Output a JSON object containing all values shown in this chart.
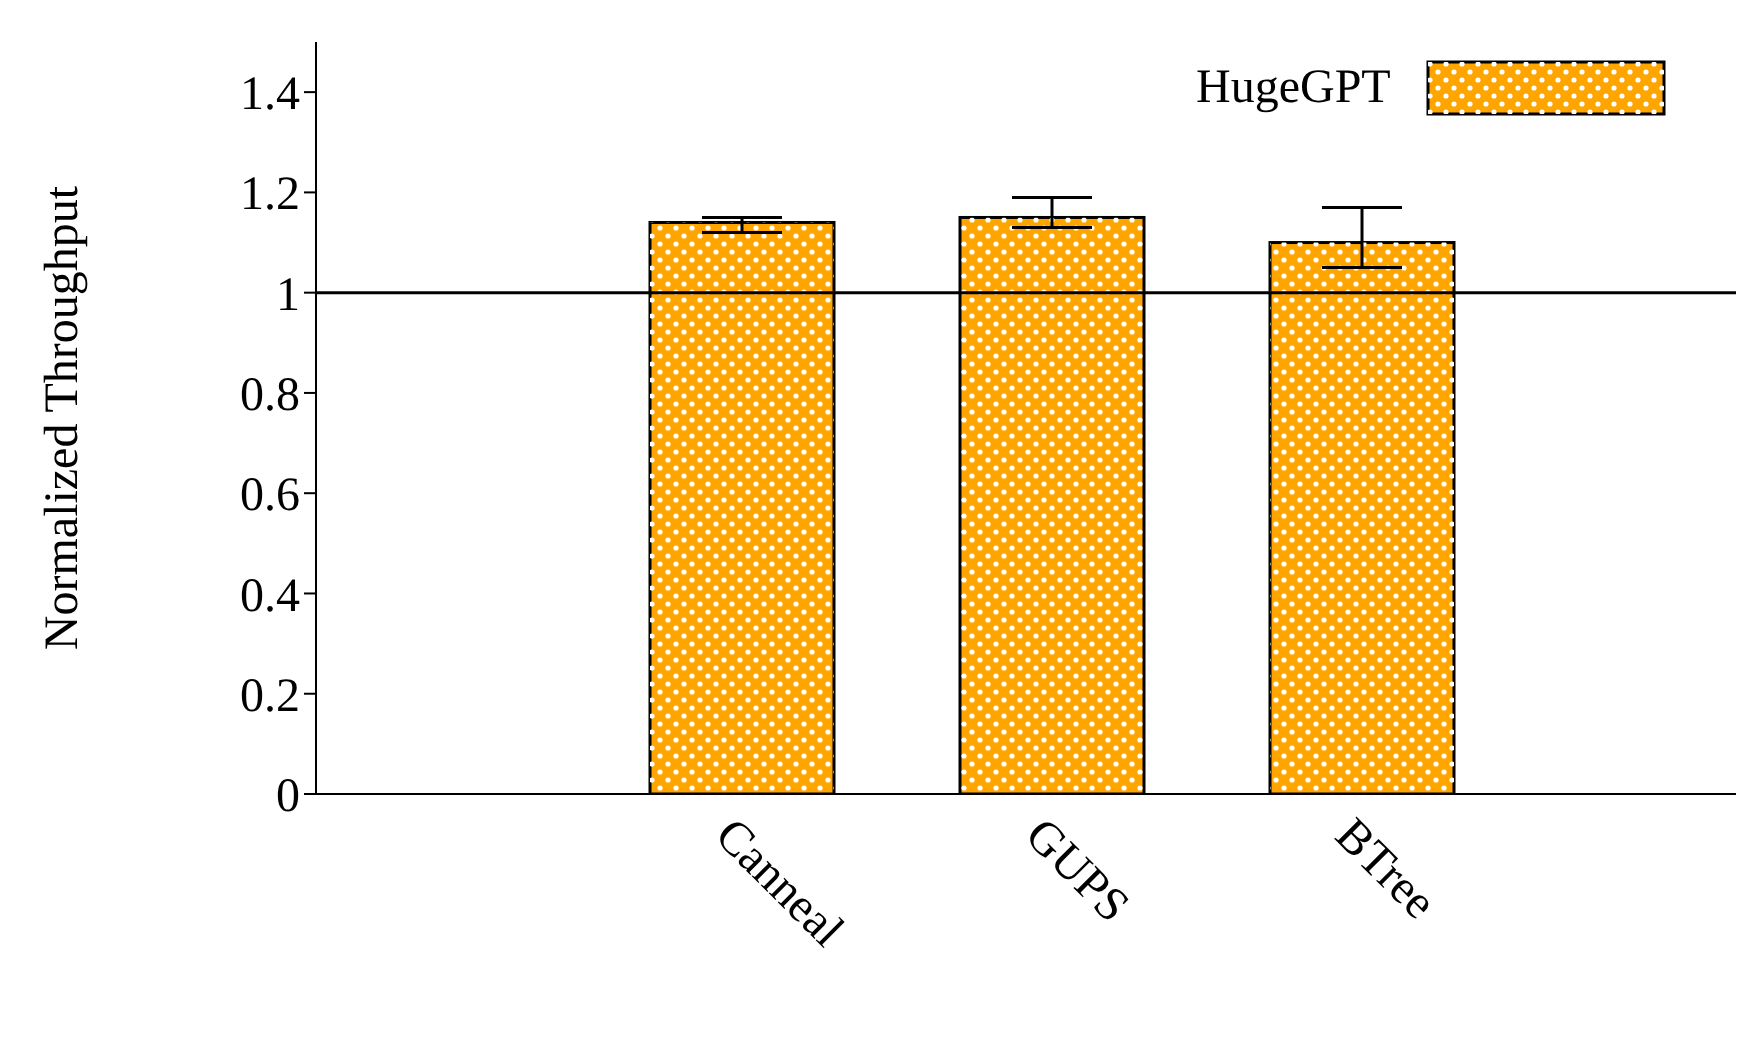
{
  "chart_data": {
    "type": "bar",
    "ylabel": "Normalized Throughput",
    "categories": [
      "Canneal",
      "GUPS",
      "BTree"
    ],
    "series": [
      {
        "name": "HugeGPT",
        "color": "#ffa500",
        "values": [
          1.14,
          1.15,
          1.1
        ],
        "errors": [
          [
            1.12,
            1.15
          ],
          [
            1.13,
            1.19
          ],
          [
            1.05,
            1.17
          ]
        ]
      }
    ],
    "ylim": [
      0,
      1.5
    ],
    "yticks": [
      0,
      0.2,
      0.4,
      0.6,
      0.8,
      1,
      1.2,
      1.4
    ],
    "ref_lines": [
      {
        "axis": "y",
        "value": 1,
        "color": "#000000"
      }
    ],
    "legend": "top right",
    "grid": false
  }
}
